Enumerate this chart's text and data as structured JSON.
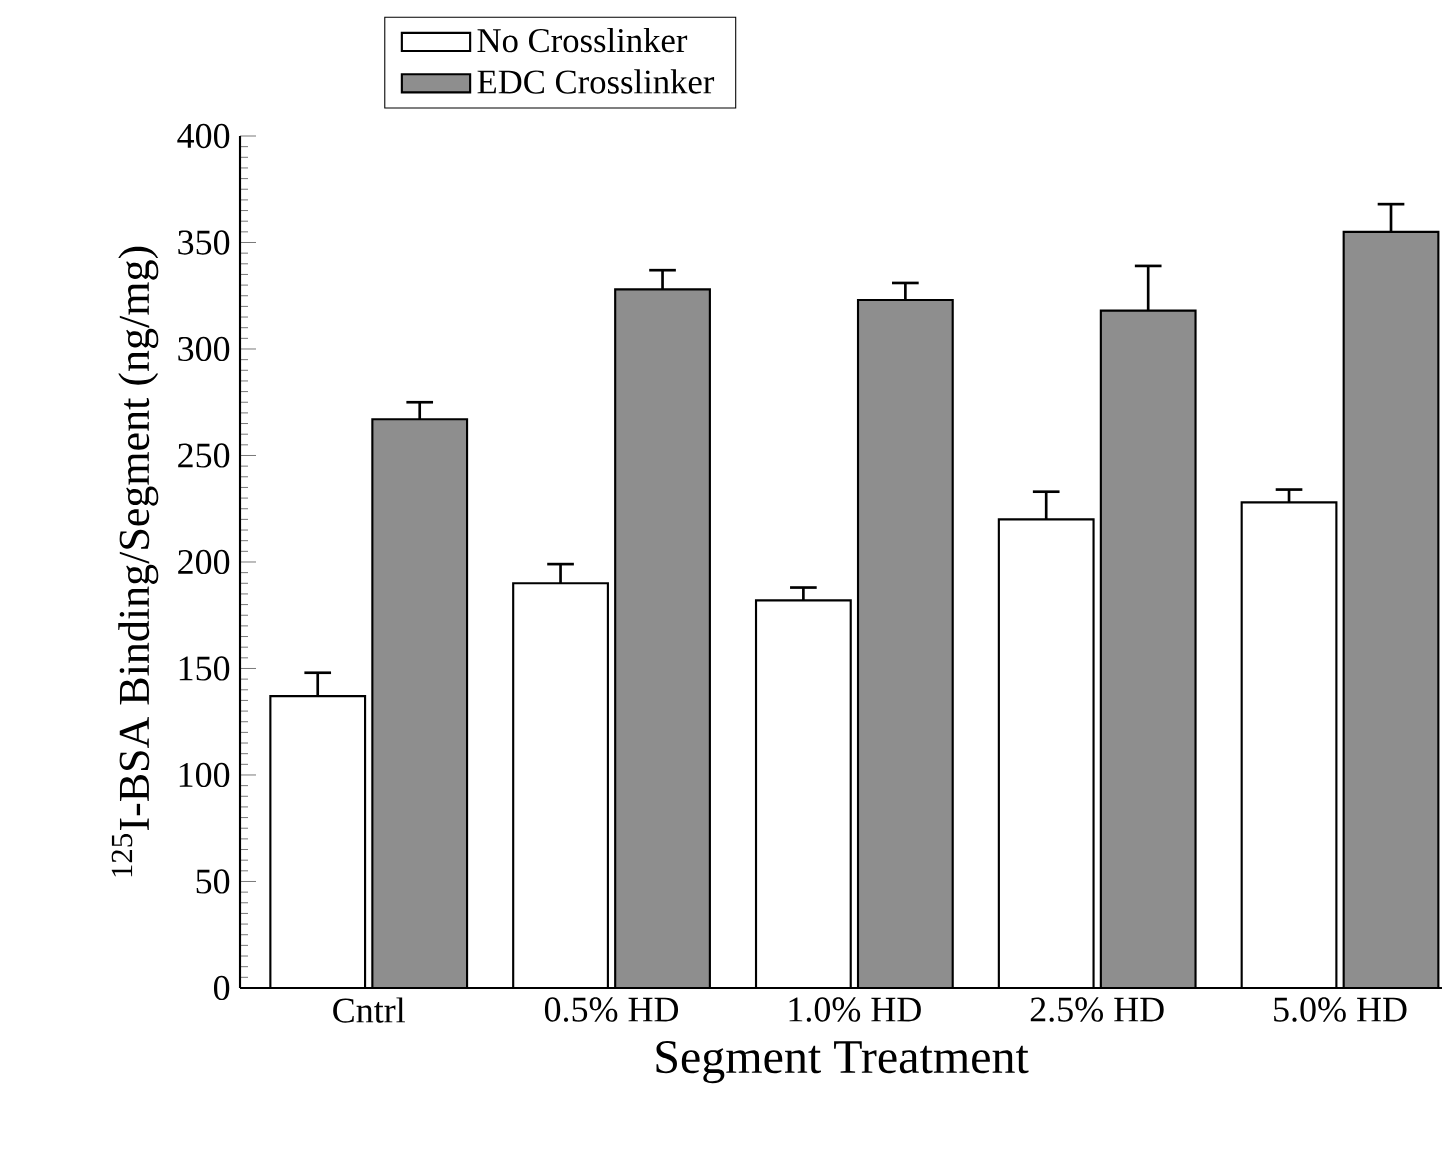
{
  "chart_data": {
    "type": "bar",
    "xlabel": "Segment Treatment",
    "ylabel": "$^{125}$I-BSA Binding/Segment (ng/mg)",
    "categories": [
      "Cntrl",
      "0.5% HD",
      "1.0% HD",
      "2.5% HD",
      "5.0% HD"
    ],
    "series": [
      {
        "name": "No Crosslinker",
        "color": "#ffffff",
        "values": [
          137,
          190,
          182,
          220,
          228
        ],
        "errors": [
          11,
          9,
          6,
          13,
          6
        ]
      },
      {
        "name": "EDC Crosslinker",
        "color": "#8e8e8e",
        "values": [
          267,
          328,
          323,
          318,
          355
        ],
        "errors": [
          8,
          9,
          8,
          21,
          13
        ]
      }
    ],
    "ylim": [
      0,
      400
    ],
    "yticks": [
      0,
      50,
      100,
      150,
      200,
      250,
      300,
      350,
      400
    ],
    "legend": "top left",
    "grid": false
  }
}
